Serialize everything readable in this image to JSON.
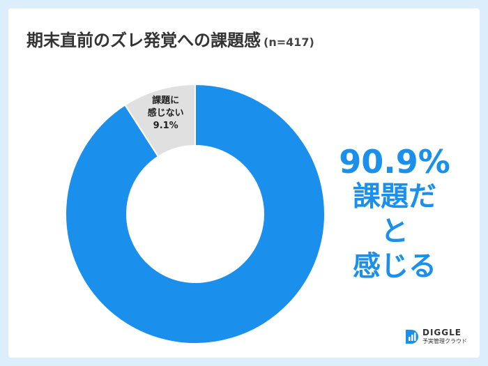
{
  "chart_data": {
    "type": "donut",
    "title": "期末直前のズレ発覚への課題感",
    "subtitle": "(n=417)",
    "categories": [
      "課題だと\n感じる",
      "課題に\n感じない"
    ],
    "values": [
      90.9,
      9.1
    ],
    "value_labels": [
      "90.9%",
      "9.1%"
    ],
    "colors": [
      "#1a8fec",
      "#e0e0e0"
    ]
  },
  "logo": {
    "name": "DIGGLE",
    "tagline": "予実管理クラウド"
  }
}
